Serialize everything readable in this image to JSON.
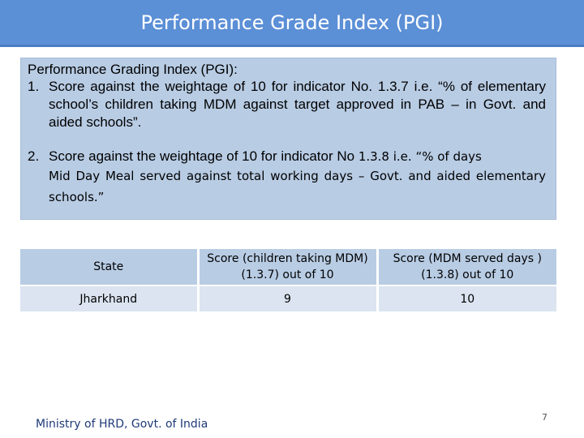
{
  "slide": {
    "title": "Performance Grade Index (PGI)",
    "page_number": "7"
  },
  "info": {
    "heading": "Performance Grading Index (PGI):",
    "item1_num": "1.",
    "item1_text": "Score against the weightage of 10 for indicator No. 1.3.7 i.e. “% of elementary school’s children taking MDM against target approved in PAB – in Govt. and aided schools”.",
    "item2_num": "2.",
    "item2_text_a": "Score against the weightage of 10 for indicator No",
    "item2_text_b": "1.3.8 i.e. “% of days",
    "item2_text_c": "Mid Day Meal served against total working days – Govt. and aided elementary schools.”"
  },
  "table": {
    "headers": [
      "State",
      "Score (children taking MDM) (1.3.7) out of 10",
      "Score (MDM served days ) (1.3.8) out of 10"
    ],
    "rows": [
      [
        "Jharkhand",
        "9",
        "10"
      ]
    ]
  },
  "footer": {
    "org": "Ministry of HRD, Govt. of India"
  }
}
